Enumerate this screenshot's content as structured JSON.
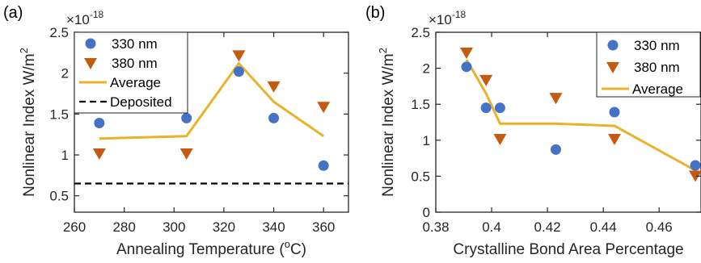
{
  "colors": {
    "circle": "#4472C4",
    "triangle": "#C55A11",
    "average": "#E8B22A",
    "deposited": "#000000",
    "axis": "#262626"
  },
  "chart_data": [
    {
      "type": "scatter",
      "panel_label": "(a)",
      "xlabel_text": "Annealing Temperature (",
      "xlabel_sup": "o",
      "xlabel_unit": "C)",
      "ylabel_text": "Nonlinear Index W/m",
      "ylabel_sup": "2",
      "y_multiplier": "×10",
      "y_multiplier_exp": "-18",
      "xlim": [
        260,
        370
      ],
      "ylim": [
        0.3,
        2.5
      ],
      "xticks": [
        260,
        280,
        300,
        320,
        340,
        360
      ],
      "xtick_labels": [
        "260",
        "280",
        "300",
        "320",
        "340",
        "360"
      ],
      "yticks": [
        0.5,
        1,
        1.5,
        2,
        2.5
      ],
      "ytick_labels": [
        "0.5",
        "1",
        "1.5",
        "2",
        "2.5"
      ],
      "grid": false,
      "legend_position": "top-left",
      "legend_labels": [
        "330 nm",
        "380 nm",
        "Average",
        "Deposited"
      ],
      "series": [
        {
          "name": "330 nm",
          "marker": "circle",
          "x": [
            270,
            305,
            326,
            340,
            360
          ],
          "y": [
            1.39,
            1.45,
            2.02,
            1.45,
            0.87
          ]
        },
        {
          "name": "380 nm",
          "marker": "triangle",
          "x": [
            270,
            305,
            326,
            340,
            360
          ],
          "y": [
            1.02,
            1.02,
            2.22,
            1.84,
            1.59
          ]
        },
        {
          "name": "Average",
          "marker": "line",
          "x": [
            270,
            305,
            326,
            340,
            360
          ],
          "y": [
            1.2,
            1.23,
            2.12,
            1.65,
            1.23
          ]
        },
        {
          "name": "Deposited",
          "marker": "dashed",
          "x": [
            260,
            370
          ],
          "y": [
            0.65,
            0.65
          ]
        }
      ]
    },
    {
      "type": "scatter",
      "panel_label": "(b)",
      "xlabel_text": "Crystalline Bond Area Percentage",
      "ylabel_text": "Nonlinear Index W/m",
      "ylabel_sup": "2",
      "y_multiplier": "×10",
      "y_multiplier_exp": "-18",
      "xlim": [
        0.38,
        0.475
      ],
      "ylim": [
        0,
        2.5
      ],
      "xticks": [
        0.38,
        0.4,
        0.42,
        0.44,
        0.46
      ],
      "xtick_labels": [
        "0.38",
        "0.4",
        "0.42",
        "0.44",
        "0.46"
      ],
      "yticks": [
        0,
        0.5,
        1,
        1.5,
        2,
        2.5
      ],
      "ytick_labels": [
        "0",
        "0.5",
        "1",
        "1.5",
        "2",
        "2.5"
      ],
      "grid": false,
      "legend_position": "top-right",
      "legend_labels": [
        "330 nm",
        "380 nm",
        "Average"
      ],
      "series": [
        {
          "name": "330 nm",
          "marker": "circle",
          "x": [
            0.391,
            0.398,
            0.403,
            0.423,
            0.444,
            0.473
          ],
          "y": [
            2.02,
            1.45,
            1.45,
            0.87,
            1.39,
            0.65
          ]
        },
        {
          "name": "380 nm",
          "marker": "triangle",
          "x": [
            0.391,
            0.398,
            0.403,
            0.423,
            0.444,
            0.473
          ],
          "y": [
            2.22,
            1.84,
            1.02,
            1.59,
            1.02,
            0.51
          ]
        },
        {
          "name": "Average",
          "marker": "line",
          "x": [
            0.391,
            0.398,
            0.403,
            0.423,
            0.444,
            0.473
          ],
          "y": [
            2.12,
            1.65,
            1.23,
            1.23,
            1.2,
            0.58
          ]
        }
      ]
    }
  ]
}
